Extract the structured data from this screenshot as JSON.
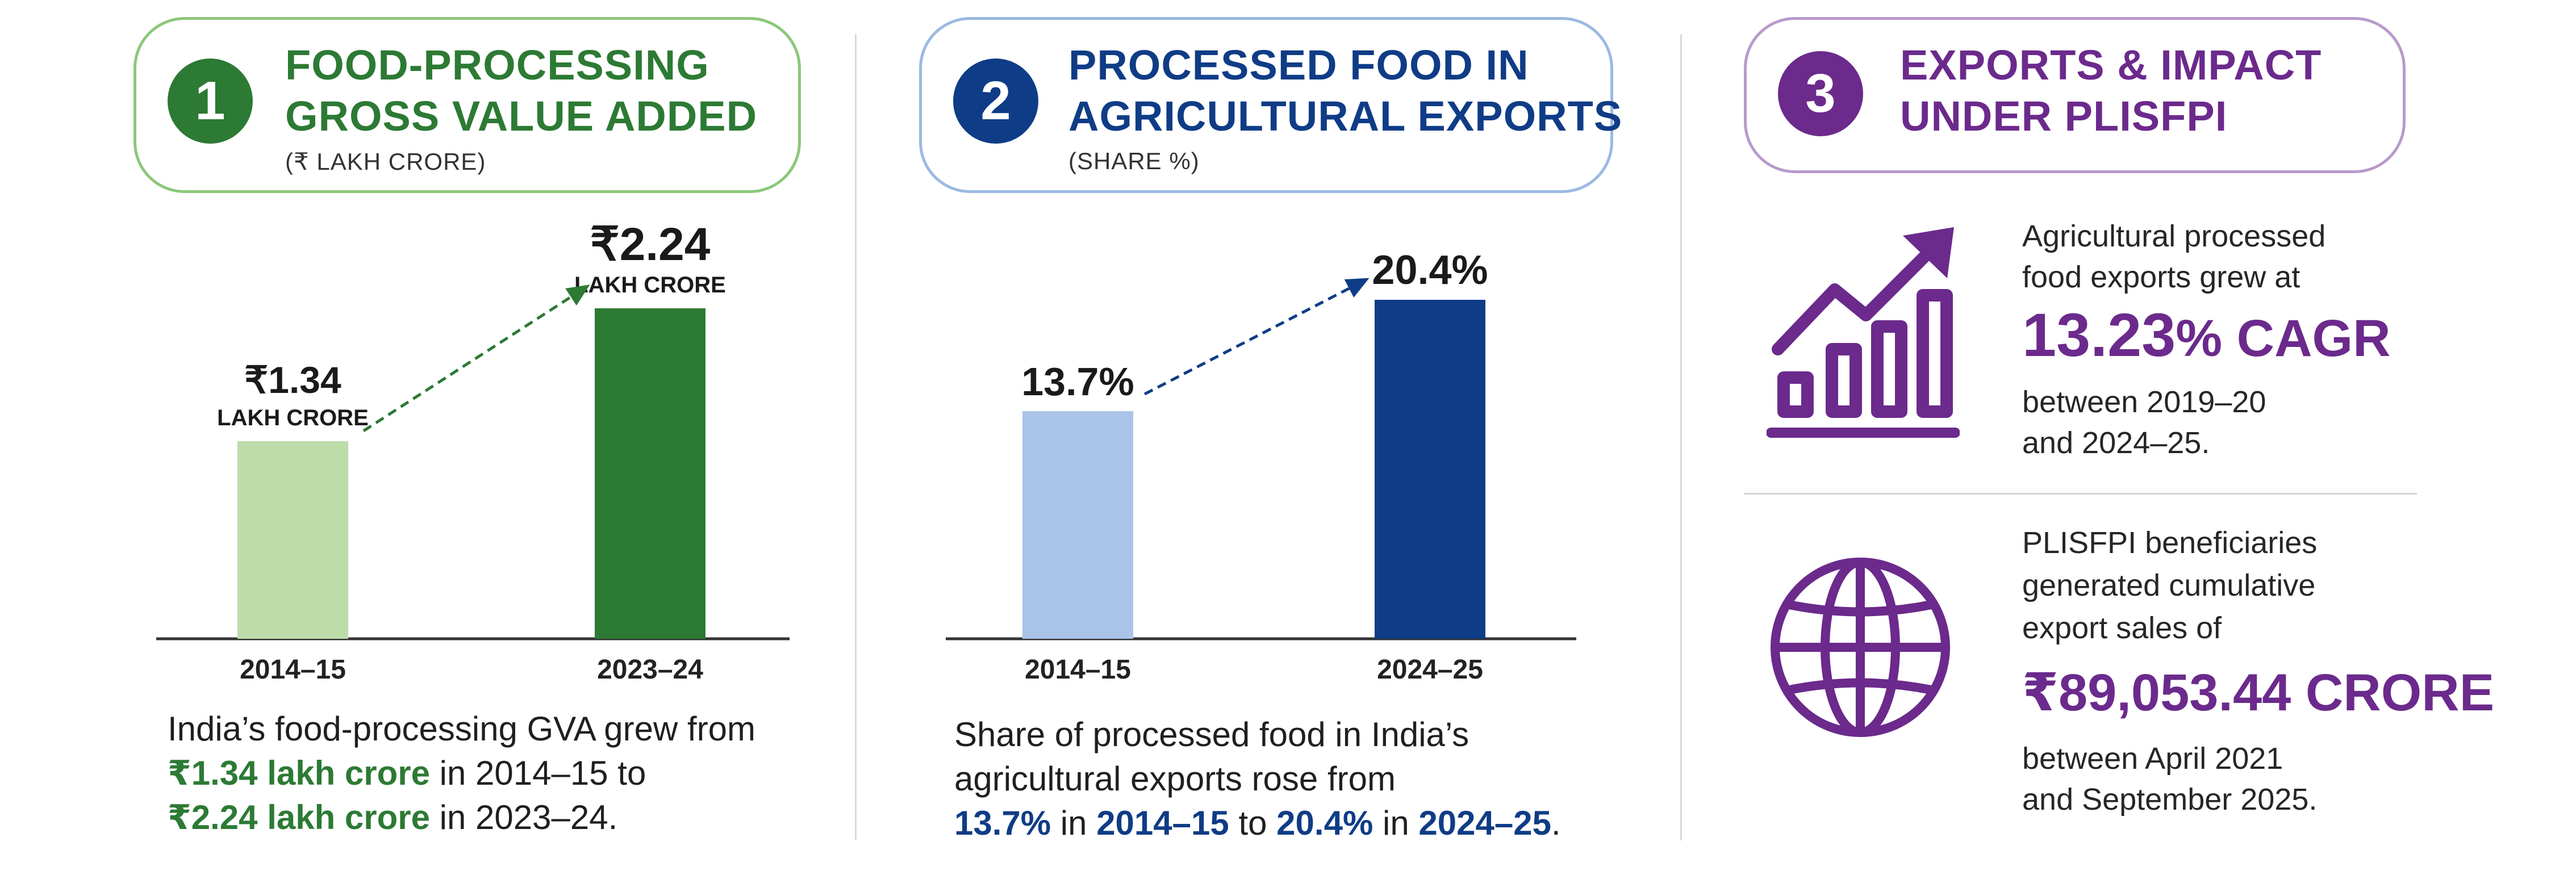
{
  "colors": {
    "green_dark": "#2c7a34",
    "green_light": "#bcdcaa",
    "blue_dark": "#0f3c86",
    "blue_light": "#a9c4e8",
    "purple": "#6b2a8c",
    "purple_light": "#b79acb"
  },
  "panel1": {
    "number": "1",
    "title_line1": "FOOD-PROCESSING",
    "title_line2": "GROSS VALUE ADDED",
    "subtitle": "(₹ LAKH CRORE)",
    "caption": {
      "line1": "India’s food-processing GVA grew from",
      "hl1": "₹1.34 lakh crore",
      "mid1": " in 2014–15 to",
      "hl2": "₹2.24 lakh crore",
      "end": " in 2023–24."
    }
  },
  "panel2": {
    "number": "2",
    "title_line1": "PROCESSED FOOD IN",
    "title_line2": "AGRICULTURAL EXPORTS",
    "subtitle": "(SHARE %)",
    "caption": {
      "line1": "Share of processed food in India’s",
      "line2": "agricultural exports rose from",
      "hl1": "13.7%",
      "mid1": " in ",
      "hl2": "2014–15",
      "mid2": " to ",
      "hl3": "20.4%",
      "mid3": " in ",
      "hl4": "2024–25",
      "end": "."
    }
  },
  "panel3": {
    "number": "3",
    "title_line1": "EXPORTS & IMPACT",
    "title_line2": "UNDER PLISFPI",
    "icon1": "growth-bar-chart-icon",
    "icon2": "globe-icon",
    "metric1": {
      "line1": "Agricultural processed",
      "line2": "food exports grew at",
      "value": "13.23",
      "value_suffix": "% CAGR",
      "line3": "between 2019–20",
      "line4": "and 2024–25."
    },
    "metric2": {
      "line1": "PLISFPI beneficiaries",
      "line2": "generated cumulative",
      "line3": "export sales of",
      "value": "₹89,053.44 CRORE",
      "line4": "between April 2021",
      "line5": "and September 2025."
    }
  },
  "chart_data": [
    {
      "type": "bar",
      "title": "FOOD-PROCESSING GROSS VALUE ADDED",
      "subtitle": "(₹ LAKH CRORE)",
      "categories": [
        "2014–15",
        "2023–24"
      ],
      "values": [
        1.34,
        2.24
      ],
      "value_labels": [
        "₹1.34",
        "₹2.24"
      ],
      "value_unit_labels": [
        "LAKH CRORE",
        "LAKH CRORE"
      ],
      "bar_colors": [
        "#bcdcaa",
        "#2c7a34"
      ],
      "ylim": [
        0,
        2.24
      ],
      "grid": false
    },
    {
      "type": "bar",
      "title": "PROCESSED FOOD IN AGRICULTURAL EXPORTS",
      "subtitle": "(SHARE %)",
      "categories": [
        "2014–15",
        "2024–25"
      ],
      "values": [
        13.7,
        20.4
      ],
      "value_labels": [
        "13.7%",
        "20.4%"
      ],
      "bar_colors": [
        "#a9c4e8",
        "#0f3c86"
      ],
      "ylim": [
        0,
        20.4
      ],
      "grid": false
    }
  ]
}
